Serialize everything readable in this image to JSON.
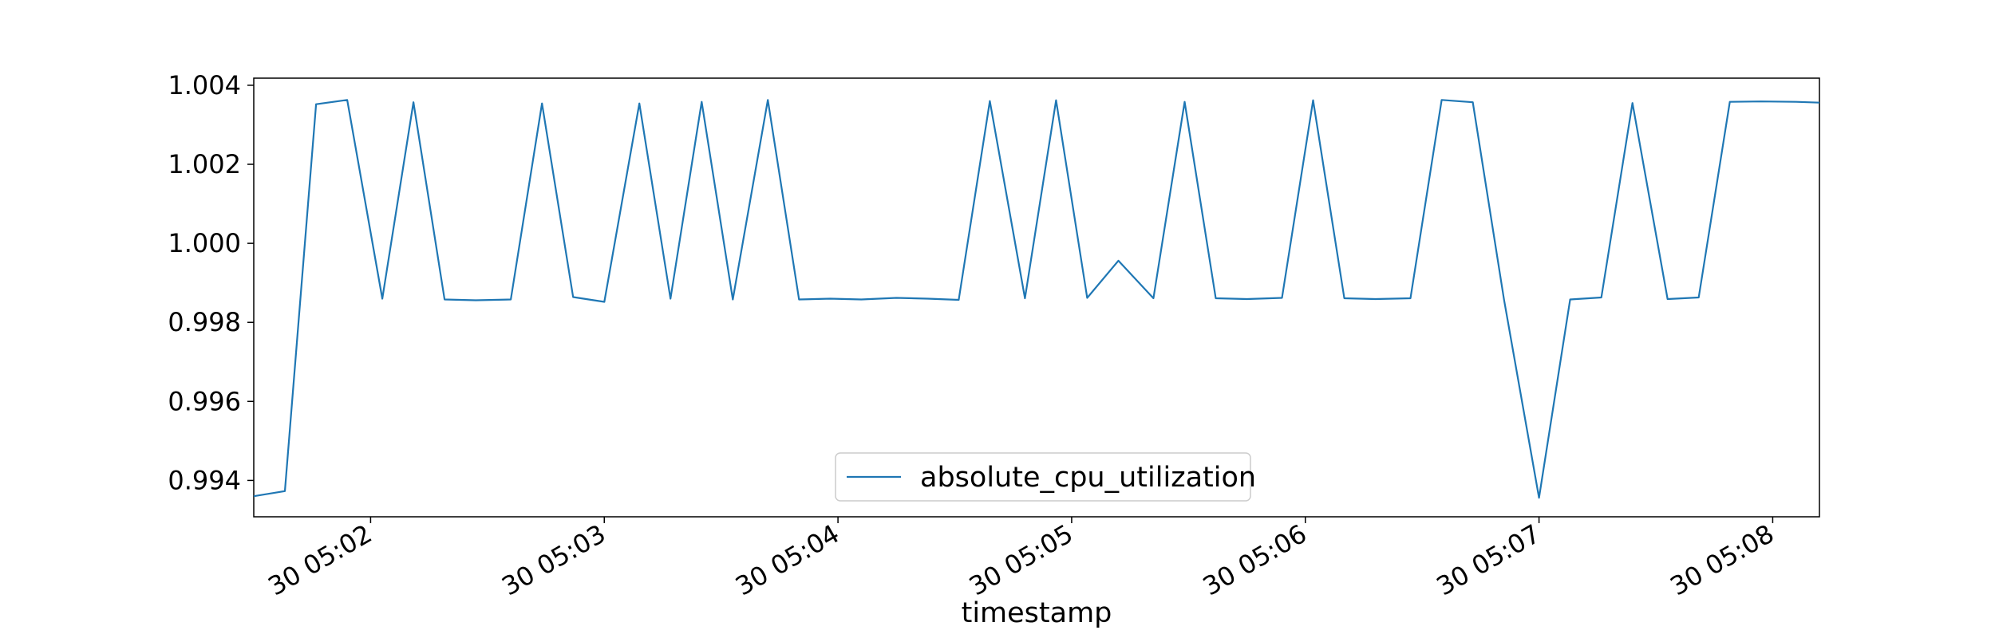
{
  "chart_data": {
    "type": "line",
    "title": "",
    "xlabel": "timestamp",
    "ylabel": "",
    "xlim": [
      "05:01:30",
      "05:08:12"
    ],
    "ylim": [
      0.99308,
      1.00418
    ],
    "x_ticks": [
      {
        "t": "05:02:00",
        "label": "30 05:02"
      },
      {
        "t": "05:03:00",
        "label": "30 05:03"
      },
      {
        "t": "05:04:00",
        "label": "30 05:04"
      },
      {
        "t": "05:05:00",
        "label": "30 05:05"
      },
      {
        "t": "05:06:00",
        "label": "30 05:06"
      },
      {
        "t": "05:07:00",
        "label": "30 05:07"
      },
      {
        "t": "05:08:00",
        "label": "30 05:08"
      }
    ],
    "y_ticks": [
      {
        "v": 0.994,
        "label": "0.994"
      },
      {
        "v": 0.996,
        "label": "0.996"
      },
      {
        "v": 0.998,
        "label": "0.998"
      },
      {
        "v": 1.0,
        "label": "1.000"
      },
      {
        "v": 1.002,
        "label": "1.002"
      },
      {
        "v": 1.004,
        "label": "1.004"
      }
    ],
    "grid": false,
    "legend": {
      "position": "bottom-center",
      "entries": [
        "absolute_cpu_utilization"
      ]
    },
    "colors": {
      "series": "#1f77b4"
    },
    "series": [
      {
        "name": "absolute_cpu_utilization",
        "x": [
          "05:01:30",
          "05:01:38",
          "05:01:46",
          "05:01:54",
          "05:02:03",
          "05:02:11",
          "05:02:19",
          "05:02:27",
          "05:02:36",
          "05:02:44",
          "05:02:52",
          "05:03:00",
          "05:03:09",
          "05:03:17",
          "05:03:25",
          "05:03:33",
          "05:03:42",
          "05:03:50",
          "05:03:58",
          "05:04:06",
          "05:04:15",
          "05:04:23",
          "05:04:31",
          "05:04:39",
          "05:04:48",
          "05:04:56",
          "05:05:04",
          "05:05:12",
          "05:05:21",
          "05:05:29",
          "05:05:37",
          "05:05:45",
          "05:05:54",
          "05:06:02",
          "05:06:10",
          "05:06:18",
          "05:06:27",
          "05:06:35",
          "05:06:43",
          "05:06:51",
          "05:07:00",
          "05:07:08",
          "05:07:16",
          "05:07:24",
          "05:07:33",
          "05:07:41",
          "05:07:49",
          "05:07:57",
          "05:08:06",
          "05:08:12"
        ],
        "values": [
          0.9936,
          0.99373,
          1.00352,
          1.00363,
          0.9986,
          1.00357,
          0.99858,
          0.99856,
          0.99858,
          1.00354,
          0.99864,
          0.99852,
          1.00354,
          0.9986,
          1.00358,
          0.99858,
          1.00363,
          0.99858,
          0.9986,
          0.99858,
          0.99862,
          0.9986,
          0.99857,
          1.0036,
          0.99861,
          1.00362,
          0.99862,
          0.99956,
          0.99861,
          1.00358,
          0.99861,
          0.99859,
          0.99862,
          1.00362,
          0.99861,
          0.99859,
          0.99861,
          1.00363,
          1.00357,
          0.99858,
          0.99356,
          0.99858,
          0.99863,
          1.00355,
          0.99859,
          0.99863,
          1.00358,
          1.00359,
          1.00358,
          1.00356
        ]
      }
    ]
  }
}
